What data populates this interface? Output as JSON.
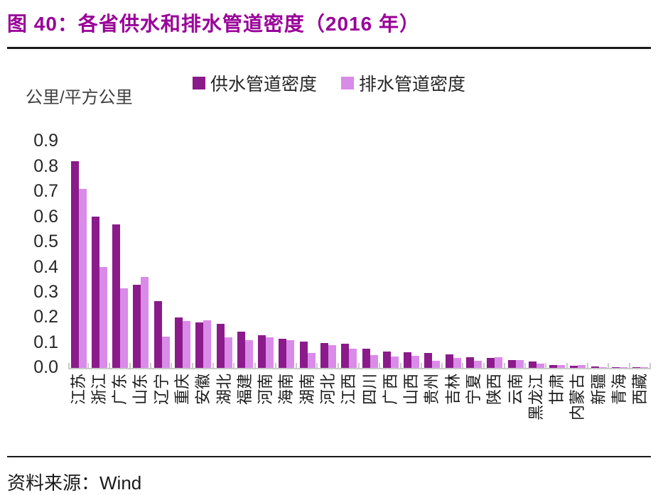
{
  "figure": {
    "title": "图 40：各省供水和排水管道密度（2016 年）",
    "source_label": "资料来源：",
    "source_value": "Wind"
  },
  "chart_data": {
    "type": "bar",
    "title": "各省供水和排水管道密度（2016 年）",
    "unit_label": "公里/平方公里",
    "xlabel": "",
    "ylabel": "公里/平方公里",
    "ylim": [
      0,
      0.9
    ],
    "yticks": [
      "0.9",
      "0.8",
      "0.7",
      "0.6",
      "0.5",
      "0.4",
      "0.3",
      "0.2",
      "0.1",
      "0.0"
    ],
    "grid": false,
    "legend_position": "top",
    "categories": [
      "江苏",
      "浙江",
      "广东",
      "山东",
      "辽宁",
      "重庆",
      "安徽",
      "湖北",
      "福建",
      "河南",
      "海南",
      "湖南",
      "河北",
      "江西",
      "四川",
      "广西",
      "山西",
      "贵州",
      "吉林",
      "宁夏",
      "陕西",
      "云南",
      "黑龙江",
      "甘肃",
      "内蒙古",
      "新疆",
      "青海",
      "西藏"
    ],
    "series": [
      {
        "name": "供水管道密度",
        "color": "#8B1A8B",
        "values": [
          0.82,
          0.6,
          0.57,
          0.33,
          0.265,
          0.2,
          0.18,
          0.175,
          0.145,
          0.13,
          0.115,
          0.105,
          0.1,
          0.095,
          0.075,
          0.065,
          0.063,
          0.06,
          0.055,
          0.042,
          0.04,
          0.03,
          0.026,
          0.01,
          0.008,
          0.006,
          0.004,
          0.003
        ]
      },
      {
        "name": "排水管道密度",
        "color": "#D98BE8",
        "values": [
          0.71,
          0.4,
          0.315,
          0.36,
          0.125,
          0.185,
          0.19,
          0.12,
          0.11,
          0.12,
          0.11,
          0.06,
          0.09,
          0.075,
          0.05,
          0.045,
          0.048,
          0.027,
          0.04,
          0.028,
          0.041,
          0.031,
          0.016,
          0.012,
          0.012,
          0.004,
          0.003,
          0.002
        ]
      }
    ]
  }
}
